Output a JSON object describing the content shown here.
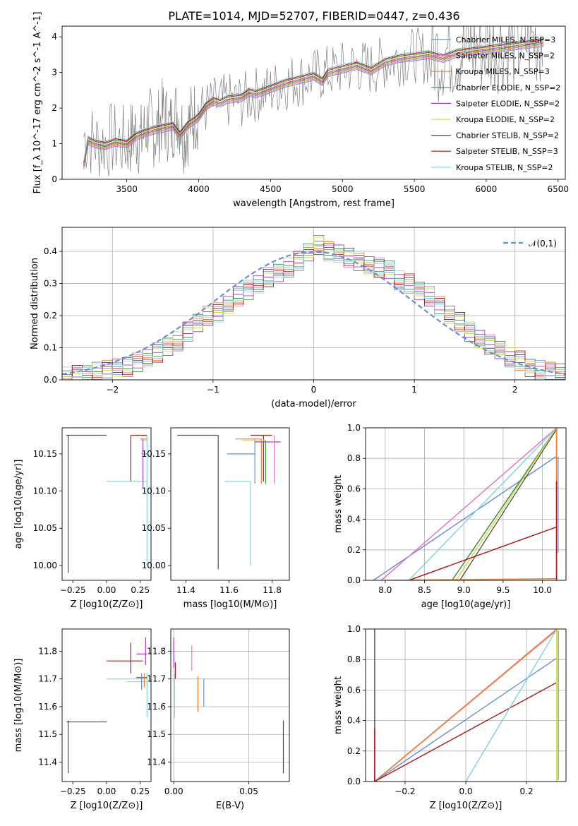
{
  "figure": {
    "title": "PLATE=1014, MJD=52707, FIBERID=0447, z=0.436"
  },
  "colors": {
    "chabrier_miles": "#6b8fd6",
    "salpeter_miles": "#e377c2",
    "kroupa_miles": "#f07f2a",
    "chabrier_elodie": "#3d8f4a",
    "salpeter_elodie": "#a040c0",
    "kroupa_elodie": "#d7d94a",
    "chabrier_stelib": "#4d4d4d",
    "salpeter_stelib": "#b01818",
    "kroupa_stelib": "#7fd8e0",
    "data": "#808080",
    "normal_curve": "#6b8fd6"
  },
  "chart_data": [
    {
      "id": "spectrum",
      "type": "line",
      "xlabel": "wavelength [Angstrom, rest frame]",
      "ylabel": "Flux [f_λ 10^-17 erg cm^-2 s^-1 A^-1]",
      "xlim": [
        3050,
        6550
      ],
      "ylim": [
        0,
        4.3
      ],
      "xticks": [
        "3500",
        "4000",
        "4500",
        "5000",
        "5500",
        "6000",
        "6500"
      ],
      "yticks": [
        "0",
        "1",
        "2",
        "3",
        "4"
      ],
      "legend": [
        "Chabrier MILES, N_SSP=3",
        "Salpeter MILES, N_SSP=2",
        "Kroupa MILES, N_SSP=3",
        "Chabrier ELODIE, N_SSP=2",
        "Salpeter ELODIE, N_SSP=2",
        "Kroupa ELODIE, N_SSP=2",
        "Chabrier STELIB, N_SSP=2",
        "Salpeter STELIB, N_SSP=3",
        "Kroupa STELIB, N_SSP=2"
      ],
      "model_x": [
        3200,
        3230,
        3280,
        3350,
        3420,
        3500,
        3560,
        3620,
        3700,
        3760,
        3820,
        3870,
        3930,
        3970,
        4000,
        4050,
        4100,
        4150,
        4200,
        4300,
        4350,
        4400,
        4500,
        4600,
        4700,
        4800,
        4860,
        4900,
        5000,
        5100,
        5200,
        5300,
        5400,
        5500,
        5600,
        5700,
        5800,
        5900,
        6000,
        6100,
        6200,
        6300,
        6400
      ],
      "model_y": [
        0.4,
        1.1,
        1.0,
        0.95,
        1.05,
        1.0,
        1.2,
        1.3,
        1.4,
        1.45,
        1.5,
        1.25,
        1.55,
        1.65,
        1.75,
        2.05,
        2.2,
        2.15,
        2.25,
        2.3,
        2.45,
        2.4,
        2.55,
        2.7,
        2.8,
        2.9,
        2.75,
        3.0,
        3.1,
        3.2,
        3.05,
        3.3,
        3.4,
        3.45,
        3.5,
        3.4,
        3.55,
        3.6,
        3.65,
        3.7,
        3.75,
        3.8,
        3.85
      ],
      "data_x": [
        3200,
        3300,
        3400,
        3500,
        3550,
        3600,
        3650,
        3700,
        3750,
        3800,
        3850,
        3900,
        3950,
        4000,
        4100,
        4200,
        4300,
        4400,
        4500,
        4600,
        4700,
        4800,
        4900,
        5000,
        5100,
        5200,
        5300,
        5400,
        5500,
        5600,
        5700,
        5800,
        5900,
        6000,
        6100,
        6200,
        6300,
        6400
      ],
      "data_y": [
        1.2,
        1.0,
        1.1,
        1.0,
        1.3,
        1.1,
        1.6,
        1.3,
        1.8,
        1.4,
        1.9,
        1.2,
        1.7,
        1.9,
        2.1,
        2.2,
        2.2,
        2.4,
        2.5,
        2.7,
        2.8,
        2.9,
        3.0,
        3.1,
        3.2,
        3.1,
        3.3,
        3.4,
        3.5,
        3.4,
        3.6,
        3.6,
        3.7,
        3.7,
        3.8,
        3.8,
        3.9,
        3.9
      ]
    },
    {
      "id": "residual_hist",
      "type": "line",
      "xlabel": "(data-model)/error",
      "ylabel": "Normed distribution",
      "xlim": [
        -2.5,
        2.5
      ],
      "ylim": [
        0,
        0.475
      ],
      "xticks": [
        "−2",
        "−1",
        "0",
        "1",
        "2"
      ],
      "yticks": [
        "0.0",
        "0.1",
        "0.2",
        "0.3",
        "0.4"
      ],
      "legend": [
        "𝒩(0,1)"
      ],
      "bin_edges": [
        -2.5,
        -2.4,
        -2.3,
        -2.2,
        -2.1,
        -2.0,
        -1.9,
        -1.8,
        -1.7,
        -1.6,
        -1.5,
        -1.4,
        -1.3,
        -1.2,
        -1.1,
        -1.0,
        -0.9,
        -0.8,
        -0.7,
        -0.6,
        -0.5,
        -0.4,
        -0.3,
        -0.2,
        -0.1,
        0.0,
        0.1,
        0.2,
        0.3,
        0.4,
        0.5,
        0.6,
        0.7,
        0.8,
        0.9,
        1.0,
        1.1,
        1.2,
        1.3,
        1.4,
        1.5,
        1.6,
        1.7,
        1.8,
        1.9,
        2.0,
        2.1,
        2.2,
        2.3,
        2.4,
        2.5
      ],
      "hist_values": [
        0.01,
        0.015,
        0.02,
        0.025,
        0.03,
        0.035,
        0.04,
        0.055,
        0.07,
        0.085,
        0.1,
        0.12,
        0.15,
        0.18,
        0.2,
        0.21,
        0.23,
        0.26,
        0.28,
        0.3,
        0.32,
        0.33,
        0.35,
        0.37,
        0.4,
        0.42,
        0.4,
        0.39,
        0.38,
        0.37,
        0.36,
        0.35,
        0.34,
        0.31,
        0.3,
        0.28,
        0.26,
        0.23,
        0.2,
        0.18,
        0.15,
        0.13,
        0.11,
        0.09,
        0.07,
        0.06,
        0.04,
        0.03,
        0.025,
        0.02
      ]
    },
    {
      "id": "age_vs_Z",
      "type": "line",
      "xlabel": "Z [log10(Z/Z⊙)]",
      "ylabel": "age [log10(age/yr)]",
      "xlim": [
        -0.33,
        0.33
      ],
      "ylim": [
        9.98,
        10.185
      ],
      "xticks": [
        "−0.25",
        "0.00",
        "0.25"
      ],
      "yticks": [
        "10.00",
        "10.05",
        "10.10",
        "10.15"
      ]
    },
    {
      "id": "age_vs_mass",
      "type": "line",
      "xlabel": "mass [log10(M/M⊙)]",
      "ylabel": "",
      "xlim": [
        11.33,
        11.88
      ],
      "ylim": [
        9.98,
        10.185
      ],
      "xticks": [
        "11.4",
        "11.6",
        "11.8"
      ],
      "yticks": [
        "10.00",
        "10.05",
        "10.10",
        "10.15"
      ]
    },
    {
      "id": "weight_vs_age",
      "type": "line",
      "xlabel": "age [log10(age/yr)]",
      "ylabel": "mass weight",
      "xlim": [
        7.75,
        10.3
      ],
      "ylim": [
        0,
        1.0
      ],
      "xticks": [
        "8.0",
        "8.5",
        "9.0",
        "9.5",
        "10.0"
      ],
      "yticks": [
        "0.0",
        "0.2",
        "0.4",
        "0.6",
        "0.8",
        "1.0"
      ]
    },
    {
      "id": "mass_vs_Z",
      "type": "line",
      "xlabel": "Z [log10(Z/Z⊙)]",
      "ylabel": "mass [log10(M/M⊙)]",
      "xlim": [
        -0.33,
        0.33
      ],
      "ylim": [
        11.33,
        11.88
      ],
      "xticks": [
        "−0.25",
        "0.00",
        "0.25"
      ],
      "yticks": [
        "11.4",
        "11.5",
        "11.6",
        "11.7",
        "11.8"
      ]
    },
    {
      "id": "mass_vs_ebv",
      "type": "line",
      "xlabel": "E(B-V)",
      "ylabel": "",
      "xlim": [
        -0.002,
        0.077
      ],
      "ylim": [
        11.33,
        11.88
      ],
      "xticks": [
        "0.00",
        "0.05"
      ],
      "yticks": [
        "11.4",
        "11.5",
        "11.6",
        "11.7",
        "11.8"
      ]
    },
    {
      "id": "weight_vs_Z",
      "type": "line",
      "xlabel": "Z [log10(Z/Z⊙)]",
      "ylabel": "mass weight",
      "xlim": [
        -0.33,
        0.33
      ],
      "ylim": [
        0,
        1.0
      ],
      "xticks": [
        "−0.2",
        "0.0",
        "0.2"
      ],
      "yticks": [
        "0.0",
        "0.2",
        "0.4",
        "0.6",
        "0.8",
        "1.0"
      ]
    }
  ]
}
